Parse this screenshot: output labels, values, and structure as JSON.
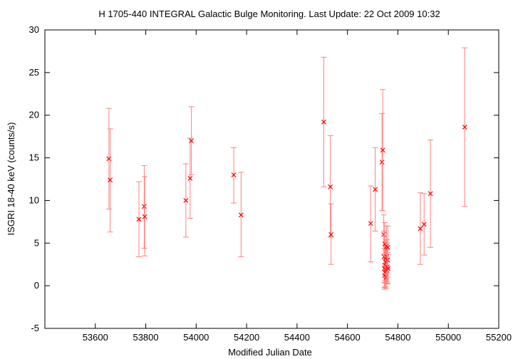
{
  "chart_data": {
    "type": "scatter",
    "title": "H 1705-440   INTEGRAL Galactic Bulge Monitoring.  Last Update: 22 Oct 2009 10:32",
    "xlabel": "Modified Julian Date",
    "ylabel": "ISGRI 18-40 keV (counts/s)",
    "xlim": [
      53400,
      55200
    ],
    "ylim": [
      -5,
      30
    ],
    "xticks": [
      53600,
      53800,
      54000,
      54200,
      54400,
      54600,
      54800,
      55000,
      55200
    ],
    "yticks": [
      -5,
      0,
      5,
      10,
      15,
      20,
      25,
      30
    ],
    "grid": false,
    "color": "#ff0000",
    "errorbar_color": "#ff8080",
    "marker": "x",
    "points": [
      {
        "x": 53654,
        "y": 14.9,
        "ylo": 9.0,
        "yhi": 20.8
      },
      {
        "x": 53659,
        "y": 12.4,
        "ylo": 6.3,
        "yhi": 18.4
      },
      {
        "x": 53773,
        "y": 7.8,
        "ylo": 3.4,
        "yhi": 12.2
      },
      {
        "x": 53794,
        "y": 9.3,
        "ylo": 4.4,
        "yhi": 14.1
      },
      {
        "x": 53796,
        "y": 8.1,
        "ylo": 3.5,
        "yhi": 12.8
      },
      {
        "x": 53959,
        "y": 10.0,
        "ylo": 5.7,
        "yhi": 14.3
      },
      {
        "x": 53976,
        "y": 12.6,
        "ylo": 7.9,
        "yhi": 17.3
      },
      {
        "x": 53981,
        "y": 17.0,
        "ylo": 13.0,
        "yhi": 21.0
      },
      {
        "x": 54149,
        "y": 13.0,
        "ylo": 9.7,
        "yhi": 16.2
      },
      {
        "x": 54178,
        "y": 8.3,
        "ylo": 3.4,
        "yhi": 13.3
      },
      {
        "x": 54506,
        "y": 19.2,
        "ylo": 11.6,
        "yhi": 26.8
      },
      {
        "x": 54532,
        "y": 11.6,
        "ylo": 5.7,
        "yhi": 17.6
      },
      {
        "x": 54535,
        "y": 6.0,
        "ylo": 2.5,
        "yhi": 9.6
      },
      {
        "x": 54692,
        "y": 7.3,
        "ylo": 2.8,
        "yhi": 11.7
      },
      {
        "x": 54710,
        "y": 11.3,
        "ylo": 6.4,
        "yhi": 16.2
      },
      {
        "x": 54737,
        "y": 14.5,
        "ylo": 8.8,
        "yhi": 20.2
      },
      {
        "x": 54740,
        "y": 15.9,
        "ylo": 8.8,
        "yhi": 23.0
      },
      {
        "x": 54744,
        "y": 6.0,
        "ylo": 3.7,
        "yhi": 8.3
      },
      {
        "x": 54745,
        "y": 3.4,
        "ylo": 0.4,
        "yhi": 6.4
      },
      {
        "x": 54746,
        "y": 2.0,
        "ylo": -0.4,
        "yhi": 4.4
      },
      {
        "x": 54747,
        "y": 1.2,
        "ylo": -0.2,
        "yhi": 2.6
      },
      {
        "x": 54748,
        "y": 4.9,
        "ylo": 2.4,
        "yhi": 7.4
      },
      {
        "x": 54749,
        "y": 2.4,
        "ylo": 0.6,
        "yhi": 4.2
      },
      {
        "x": 54750,
        "y": 1.5,
        "ylo": -0.1,
        "yhi": 3.1
      },
      {
        "x": 54751,
        "y": 3.2,
        "ylo": 1.0,
        "yhi": 5.4
      },
      {
        "x": 54752,
        "y": 1.9,
        "ylo": 0.3,
        "yhi": 3.5
      },
      {
        "x": 54753,
        "y": 2.7,
        "ylo": 0.8,
        "yhi": 4.6
      },
      {
        "x": 54754,
        "y": 1.0,
        "ylo": -0.3,
        "yhi": 2.3
      },
      {
        "x": 54755,
        "y": 4.6,
        "ylo": 2.2,
        "yhi": 7.0
      },
      {
        "x": 54756,
        "y": 3.4,
        "ylo": 1.4,
        "yhi": 5.4
      },
      {
        "x": 54757,
        "y": 1.8,
        "ylo": 0.2,
        "yhi": 3.4
      },
      {
        "x": 54758,
        "y": 2.2,
        "ylo": 0.5,
        "yhi": 3.9
      },
      {
        "x": 54759,
        "y": 3.0,
        "ylo": 1.0,
        "yhi": 5.0
      },
      {
        "x": 54760,
        "y": 4.5,
        "ylo": 2.0,
        "yhi": 7.0
      },
      {
        "x": 54761,
        "y": 2.0,
        "ylo": 0.3,
        "yhi": 3.7
      },
      {
        "x": 54889,
        "y": 6.7,
        "ylo": 2.5,
        "yhi": 10.9
      },
      {
        "x": 54904,
        "y": 7.2,
        "ylo": 3.6,
        "yhi": 10.8
      },
      {
        "x": 54929,
        "y": 10.8,
        "ylo": 4.5,
        "yhi": 17.1
      },
      {
        "x": 55065,
        "y": 18.6,
        "ylo": 9.3,
        "yhi": 27.9
      }
    ]
  }
}
